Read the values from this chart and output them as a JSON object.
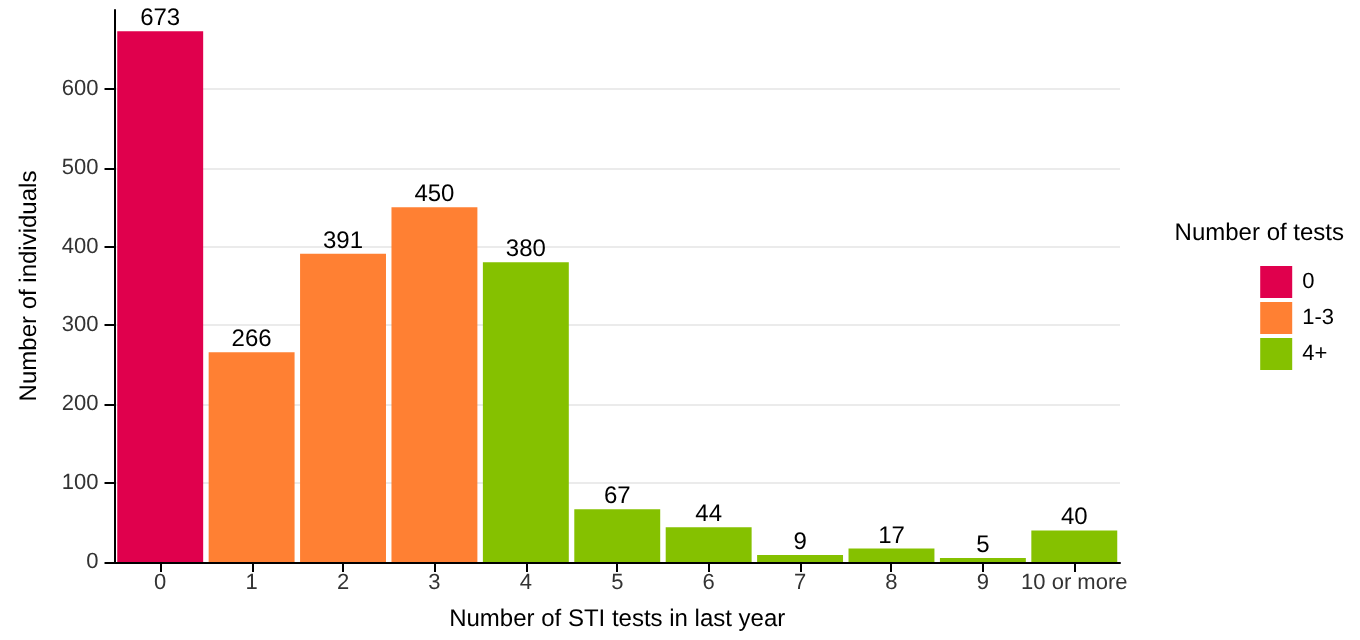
{
  "chart_data": {
    "type": "bar",
    "xlabel": "Number of STI tests in last year",
    "ylabel": "Number of individuals",
    "legend_title": "Number of tests",
    "categories": [
      "0",
      "1",
      "2",
      "3",
      "4",
      "5",
      "6",
      "7",
      "8",
      "9",
      "10 or more"
    ],
    "series": [
      {
        "name": "0",
        "color": "#e0004d",
        "values": [
          673,
          null,
          null,
          null,
          null,
          null,
          null,
          null,
          null,
          null,
          null
        ]
      },
      {
        "name": "1-3",
        "color": "#ff8033",
        "values": [
          null,
          266,
          391,
          450,
          null,
          null,
          null,
          null,
          null,
          null,
          null
        ]
      },
      {
        "name": "4+",
        "color": "#85c100",
        "values": [
          null,
          null,
          null,
          null,
          380,
          67,
          44,
          9,
          17,
          5,
          40
        ]
      }
    ],
    "stacked": true,
    "data_labels": true,
    "ylim": [
      0,
      700
    ],
    "yticks": [
      0,
      100,
      200,
      300,
      400,
      500,
      600
    ],
    "grid": "y",
    "legend": "right"
  }
}
